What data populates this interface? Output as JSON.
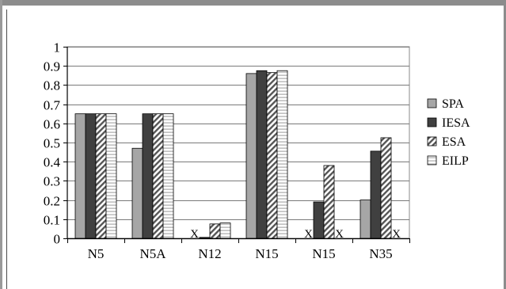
{
  "chart_data": {
    "type": "bar",
    "categories": [
      "N5",
      "N5A",
      "N12",
      "N15",
      "N15",
      "N35"
    ],
    "series": [
      {
        "name": "SPA",
        "color": "#a6a6a6",
        "pattern": "solid",
        "values": [
          0.65,
          0.47,
          null,
          0.86,
          null,
          0.2
        ]
      },
      {
        "name": "IESA",
        "color": "#404040",
        "pattern": "solid",
        "values": [
          0.65,
          0.65,
          0.005,
          0.875,
          0.19,
          0.455
        ]
      },
      {
        "name": "ESA",
        "color": "#ffffff",
        "pattern": "diagonal-hatch",
        "values": [
          0.65,
          0.65,
          0.075,
          0.865,
          0.38,
          0.525
        ]
      },
      {
        "name": "EILP",
        "color": "#ffffff",
        "pattern": "horizontal-hatch",
        "values": [
          0.65,
          0.65,
          0.08,
          0.875,
          null,
          null
        ]
      }
    ],
    "missing_markers": [
      {
        "category_index": 2,
        "series": "SPA",
        "label": "X"
      },
      {
        "category_index": 4,
        "series": "SPA",
        "label": "X"
      },
      {
        "category_index": 4,
        "series": "EILP",
        "label": "X"
      },
      {
        "category_index": 5,
        "series": "EILP",
        "label": "X"
      }
    ],
    "ylim": [
      0,
      1
    ],
    "yticks": [
      "0",
      "0.1",
      "0.2",
      "0.3",
      "0.4",
      "0.5",
      "0.6",
      "0.7",
      "0.8",
      "0.9",
      "1"
    ],
    "grid": true,
    "legend": "right"
  }
}
